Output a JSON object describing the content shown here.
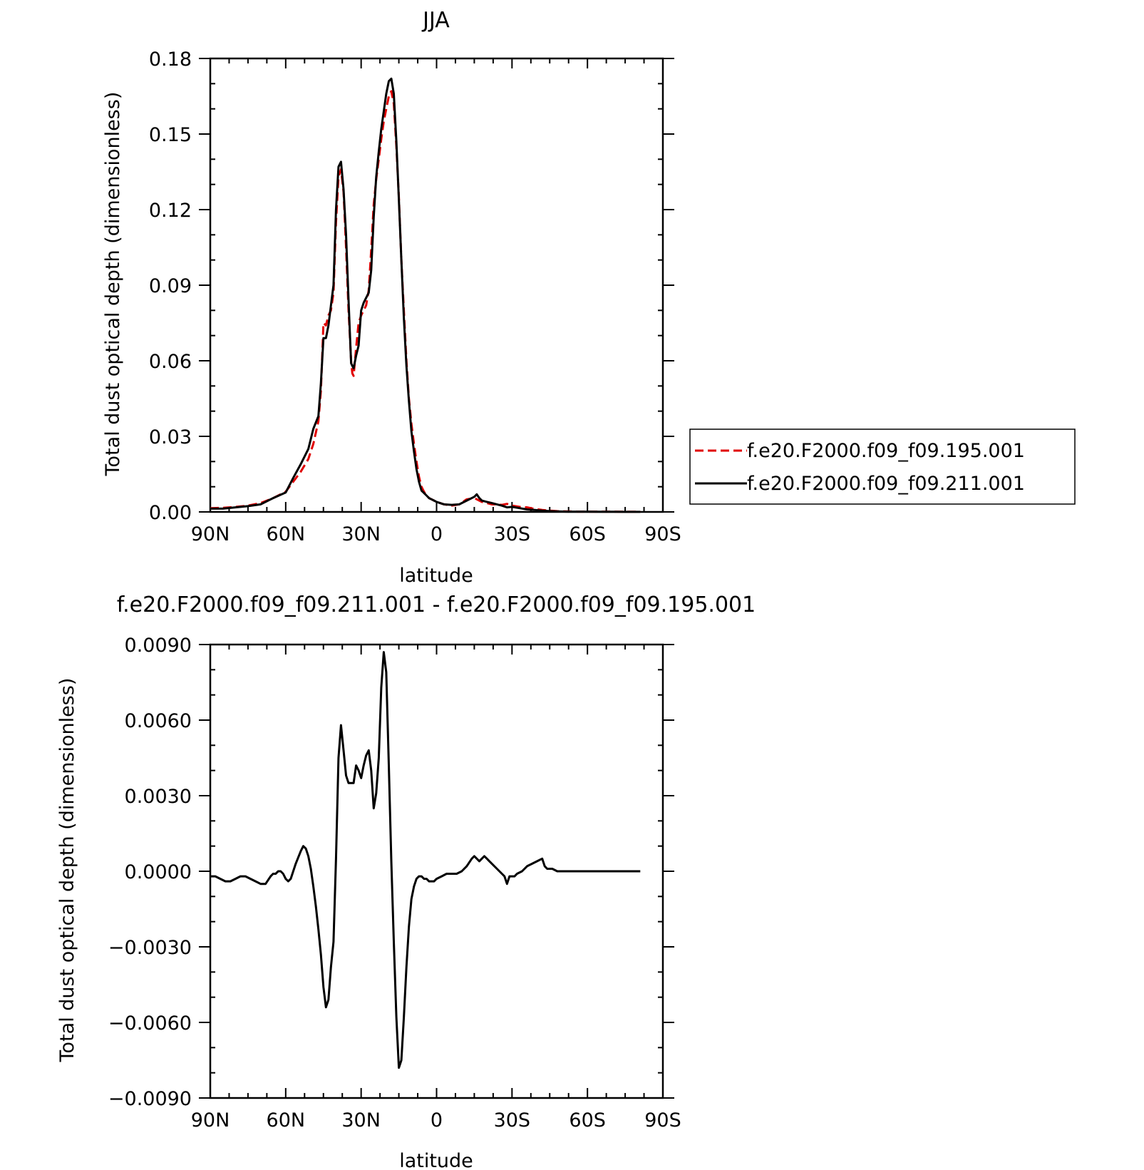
{
  "chart_data": [
    {
      "type": "line",
      "title": "JJA",
      "xlabel": "latitude",
      "ylabel": "Total dust optical depth (dimensionless)",
      "xlim": [
        90,
        -90
      ],
      "ylim": [
        0,
        0.18
      ],
      "x_ticks": [
        90,
        60,
        30,
        0,
        -30,
        -60,
        -90
      ],
      "x_tick_labels": [
        "90N",
        "60N",
        "30N",
        "0",
        "30S",
        "60S",
        "90S"
      ],
      "y_ticks": [
        0,
        0.03,
        0.06,
        0.09,
        0.12,
        0.15,
        0.18
      ],
      "y_tick_labels": [
        "0.00",
        "0.03",
        "0.06",
        "0.09",
        "0.12",
        "0.15",
        "0.18"
      ],
      "legend_position": "right",
      "series": [
        {
          "name": "f.e20.F2000.f09_f09.195.001",
          "color": "#e00000",
          "dash": "dashed",
          "x": [
            90,
            85,
            80,
            75,
            70,
            65,
            60,
            57,
            54,
            51,
            49,
            47,
            46,
            45,
            44,
            43,
            42,
            41,
            40,
            39,
            38,
            37,
            36,
            35,
            34,
            33.5,
            33,
            32,
            31,
            30,
            29,
            28,
            27,
            26,
            25,
            24,
            23,
            22,
            21,
            20,
            19,
            18,
            17,
            16,
            15,
            14,
            13,
            12,
            11,
            10,
            9,
            8,
            7,
            6,
            5,
            4,
            3,
            2,
            1,
            0,
            -3,
            -6,
            -9,
            -12,
            -15,
            -16,
            -17,
            -18,
            -20,
            -22,
            -24,
            -26,
            -28,
            -30,
            -33,
            -36,
            -39,
            -42,
            -45,
            -48,
            -52,
            -56,
            -60,
            -65,
            -70,
            -75,
            -80,
            -81
          ],
          "y": [
            0.0015,
            0.0016,
            0.002,
            0.0025,
            0.0035,
            0.0055,
            0.008,
            0.012,
            0.016,
            0.021,
            0.027,
            0.036,
            0.048,
            0.075,
            0.074,
            0.078,
            0.08,
            0.087,
            0.115,
            0.133,
            0.136,
            0.127,
            0.105,
            0.08,
            0.06,
            0.055,
            0.054,
            0.065,
            0.075,
            0.078,
            0.08,
            0.082,
            0.088,
            0.104,
            0.122,
            0.132,
            0.14,
            0.148,
            0.155,
            0.16,
            0.165,
            0.167,
            0.162,
            0.145,
            0.125,
            0.1,
            0.08,
            0.06,
            0.045,
            0.035,
            0.027,
            0.02,
            0.014,
            0.01,
            0.008,
            0.0065,
            0.0055,
            0.005,
            0.0045,
            0.004,
            0.003,
            0.0025,
            0.003,
            0.005,
            0.0055,
            0.005,
            0.0045,
            0.004,
            0.0035,
            0.003,
            0.003,
            0.0028,
            0.0032,
            0.0025,
            0.002,
            0.0018,
            0.0012,
            0.0008,
            0.0005,
            0.0003,
            0.0002,
            0.0001,
            0.0001,
            0.0001,
            0.0001,
            5e-05,
            5e-05,
            5e-05
          ]
        },
        {
          "name": "f.e20.F2000.f09_f09.211.001",
          "color": "#000000",
          "dash": "solid",
          "x": [
            90,
            85,
            80,
            75,
            70,
            65,
            60,
            57,
            54,
            51,
            49,
            47,
            46,
            45,
            44,
            43,
            42,
            41,
            40,
            39,
            38,
            37,
            36,
            35,
            34,
            33.5,
            33,
            32,
            31,
            30,
            29,
            28,
            27,
            26,
            25,
            24,
            23,
            22,
            21,
            20,
            19,
            18,
            17,
            16,
            15,
            14,
            13,
            12,
            11,
            10,
            9,
            8,
            7,
            6,
            5,
            4,
            3,
            2,
            1,
            0,
            -3,
            -6,
            -9,
            -12,
            -15,
            -16,
            -17,
            -18,
            -20,
            -22,
            -24,
            -26,
            -28,
            -30,
            -33,
            -36,
            -39,
            -42,
            -45,
            -48,
            -52,
            -56,
            -60,
            -65,
            -70,
            -75,
            -80,
            -81
          ],
          "y": [
            0.0013,
            0.0013,
            0.0018,
            0.0023,
            0.003,
            0.0055,
            0.0077,
            0.0135,
            0.019,
            0.025,
            0.033,
            0.038,
            0.051,
            0.069,
            0.069,
            0.074,
            0.082,
            0.09,
            0.12,
            0.137,
            0.139,
            0.128,
            0.11,
            0.084,
            0.059,
            0.058,
            0.057,
            0.062,
            0.066,
            0.08,
            0.083,
            0.085,
            0.087,
            0.096,
            0.117,
            0.133,
            0.143,
            0.152,
            0.159,
            0.166,
            0.171,
            0.172,
            0.166,
            0.147,
            0.124,
            0.1,
            0.077,
            0.058,
            0.044,
            0.032,
            0.024,
            0.017,
            0.012,
            0.0085,
            0.0075,
            0.0065,
            0.0055,
            0.005,
            0.0045,
            0.004,
            0.003,
            0.0028,
            0.003,
            0.0045,
            0.006,
            0.007,
            0.0055,
            0.0045,
            0.004,
            0.0035,
            0.003,
            0.0025,
            0.0018,
            0.002,
            0.0015,
            0.001,
            0.0008,
            0.0005,
            0.0003,
            0.0002,
            0.0001,
            0.0001,
            0.0001,
            5e-05,
            5e-05,
            3e-05,
            3e-05,
            3e-05
          ]
        }
      ]
    },
    {
      "type": "line",
      "title": "f.e20.F2000.f09_f09.211.001 - f.e20.F2000.f09_f09.195.001",
      "xlabel": "latitude",
      "ylabel": "Total dust optical depth (dimensionless)",
      "xlim": [
        90,
        -90
      ],
      "ylim": [
        -0.009,
        0.009
      ],
      "x_ticks": [
        90,
        60,
        30,
        0,
        -30,
        -60,
        -90
      ],
      "x_tick_labels": [
        "90N",
        "60N",
        "30N",
        "0",
        "30S",
        "60S",
        "90S"
      ],
      "y_ticks": [
        -0.009,
        -0.006,
        -0.003,
        0,
        0.003,
        0.006,
        0.009
      ],
      "y_tick_labels": [
        "−0.0090",
        "−0.0060",
        "−0.0030",
        "0.0000",
        "0.0030",
        "0.0060",
        "0.0090"
      ],
      "series": [
        {
          "color": "#000000",
          "dash": "solid",
          "x": [
            90,
            88,
            86,
            84,
            82,
            80,
            78,
            76,
            74,
            72,
            70,
            68,
            66,
            65,
            64,
            63,
            62,
            61,
            60,
            59,
            58,
            56,
            54,
            53,
            52,
            51,
            50,
            49,
            48,
            47,
            46,
            45,
            44,
            43,
            42,
            41,
            40,
            39,
            38,
            37,
            36,
            35,
            34,
            33,
            32,
            31,
            30,
            29,
            28,
            27,
            26,
            25,
            24,
            23,
            22,
            21,
            20,
            19,
            18,
            17,
            16,
            15,
            14,
            13,
            12,
            11,
            10,
            9,
            8,
            7,
            6,
            5,
            4,
            3,
            2,
            1,
            0,
            -2,
            -4,
            -6,
            -8,
            -10,
            -12,
            -14,
            -15,
            -16,
            -17,
            -18,
            -19,
            -20,
            -21,
            -22,
            -24,
            -26,
            -27,
            -28,
            -29,
            -30,
            -31,
            -32,
            -34,
            -36,
            -38,
            -40,
            -42,
            -43,
            -44,
            -46,
            -48,
            -50,
            -53,
            -56,
            -60,
            -64,
            -68,
            -72,
            -76,
            -78,
            -80,
            -81
          ],
          "y": [
            -0.0002,
            -0.0002,
            -0.0003,
            -0.0004,
            -0.0004,
            -0.0003,
            -0.0002,
            -0.0002,
            -0.0003,
            -0.0004,
            -0.0005,
            -0.0005,
            -0.0002,
            -0.0001,
            -0.0001,
            0,
            0,
            -0.0001,
            -0.0003,
            -0.0004,
            -0.0003,
            0.0003,
            0.0008,
            0.001,
            0.0009,
            0.0006,
            0.0001,
            -0.0006,
            -0.0014,
            -0.0023,
            -0.0033,
            -0.0046,
            -0.0054,
            -0.0051,
            -0.0038,
            -0.0028,
            0.0005,
            0.0045,
            0.0058,
            0.0048,
            0.0038,
            0.0035,
            0.0035,
            0.0035,
            0.0042,
            0.004,
            0.0037,
            0.0042,
            0.0046,
            0.0048,
            0.004,
            0.0025,
            0.0031,
            0.0045,
            0.0073,
            0.0087,
            0.0079,
            0.0042,
            0.0004,
            -0.0028,
            -0.0058,
            -0.0078,
            -0.0075,
            -0.0058,
            -0.0038,
            -0.0022,
            -0.0011,
            -0.0006,
            -0.0003,
            -0.0002,
            -0.0002,
            -0.0003,
            -0.0003,
            -0.0004,
            -0.0004,
            -0.0004,
            -0.0003,
            -0.0002,
            -0.0001,
            -0.0001,
            -0.0001,
            0,
            0.0002,
            0.0005,
            0.0006,
            0.0005,
            0.0004,
            0.0005,
            0.0006,
            0.0005,
            0.0004,
            0.0003,
            0.0001,
            -0.0001,
            -0.0002,
            -0.0005,
            -0.0002,
            -0.0002,
            -0.0002,
            -0.0001,
            0,
            0.0002,
            0.0003,
            0.0004,
            0.0005,
            0.0002,
            0.0001,
            0.0001,
            0,
            0,
            0,
            0,
            0,
            0,
            0,
            0,
            0,
            0,
            0,
            0
          ]
        }
      ]
    }
  ]
}
